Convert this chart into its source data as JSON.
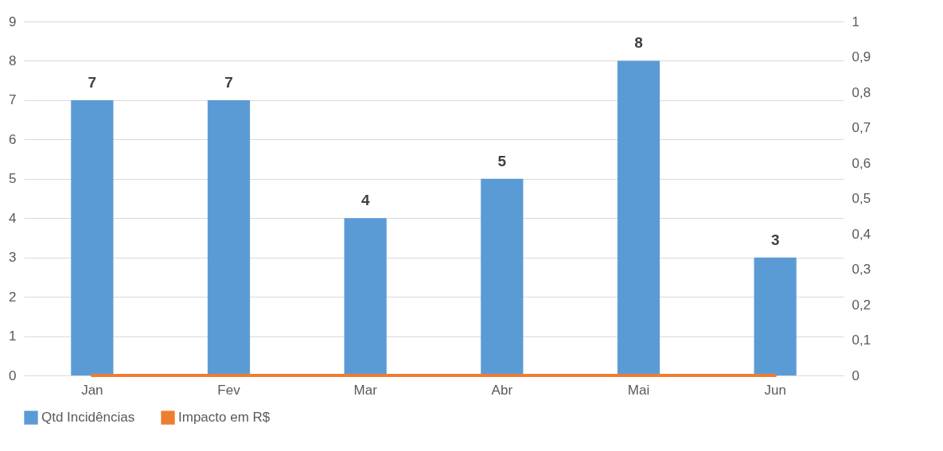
{
  "chart_data": {
    "type": "bar",
    "categories": [
      "Jan",
      "Fev",
      "Mar",
      "Abr",
      "Mai",
      "Jun"
    ],
    "series": [
      {
        "name": "Qtd Incidências",
        "color": "#5b9bd5",
        "values": [
          7,
          7,
          4,
          5,
          8,
          3
        ],
        "value_labels": [
          "7",
          "7",
          "4",
          "5",
          "8",
          "3"
        ]
      },
      {
        "name": "Impacto em R$",
        "type": "line",
        "axis": "y2",
        "color": "#ed7d31",
        "values": [
          0,
          0,
          0,
          0,
          0,
          0
        ]
      }
    ],
    "ylim": [
      0,
      9
    ],
    "yticks": [
      0,
      1,
      2,
      3,
      4,
      5,
      6,
      7,
      8,
      9
    ],
    "y2lim": [
      0,
      1
    ],
    "y2ticks": [
      0,
      {
        "value": 0.1,
        "label": "0,1"
      },
      {
        "value": 0.2,
        "label": "0,2"
      },
      {
        "value": 0.3,
        "label": "0,3"
      },
      {
        "value": 0.4,
        "label": "0,4"
      },
      {
        "value": 0.5,
        "label": "0,5"
      },
      {
        "value": 0.6,
        "label": "0,6"
      },
      {
        "value": 0.7,
        "label": "0,7"
      },
      {
        "value": 0.8,
        "label": "0,8"
      },
      {
        "value": 0.9,
        "label": "0,9"
      },
      1
    ],
    "grid": "y",
    "legend": "bottom"
  }
}
